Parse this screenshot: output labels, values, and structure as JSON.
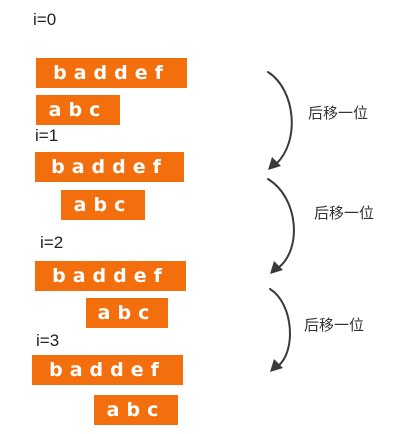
{
  "steps": [
    {
      "label": "i=0",
      "main": "baddef",
      "pattern": "abc"
    },
    {
      "label": "i=1",
      "main": "baddef",
      "pattern": "abc"
    },
    {
      "label": "i=2",
      "main": "baddef",
      "pattern": "abc"
    },
    {
      "label": "i=3",
      "main": "baddef",
      "pattern": "abc"
    }
  ],
  "arrows": [
    {
      "text": "后移一位"
    },
    {
      "text": "后移一位"
    },
    {
      "text": "后移一位"
    }
  ],
  "colors": {
    "bar": "#f36f0d",
    "bar_text": "#ffffff",
    "arrow": "#3a3a3a"
  }
}
